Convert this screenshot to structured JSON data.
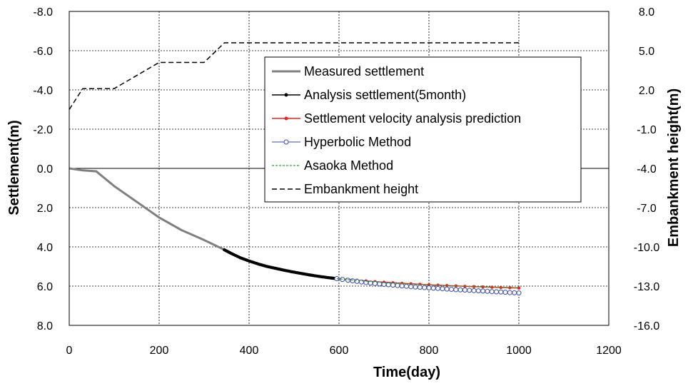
{
  "chart_data": {
    "type": "line",
    "xlabel": "Time(day)",
    "ylabel": "Settlement(m)",
    "y2label": "Embankment height(m)",
    "xlim": [
      0,
      1200
    ],
    "xticks": [
      "0",
      "200",
      "400",
      "600",
      "800",
      "1000",
      "1200"
    ],
    "xtick_values": [
      0,
      200,
      400,
      600,
      800,
      1000,
      1200
    ],
    "ylim": [
      -8.0,
      8.0
    ],
    "y_inverted": true,
    "yticks": [
      "-8.0",
      "-6.0",
      "-4.0",
      "-2.0",
      "0.0",
      "2.0",
      "4.0",
      "6.0",
      "8.0"
    ],
    "ytick_values": [
      -8,
      -6,
      -4,
      -2,
      0,
      2,
      4,
      6,
      8
    ],
    "y2lim": [
      -16.0,
      8.0
    ],
    "y2ticks": [
      "8.0",
      "5.0",
      "2.0",
      "-1.0",
      "-4.0",
      "-7.0",
      "-10.0",
      "-13.0",
      "-16.0"
    ],
    "y2tick_values": [
      8,
      5,
      2,
      -1,
      -4,
      -7,
      -10,
      -13,
      -16
    ],
    "grid": true,
    "legend_position": "top-right",
    "series": [
      {
        "name": "Measured settlement",
        "axis": "left",
        "color": "#7f7f7f",
        "style": "solid-thick",
        "x": [
          0,
          30,
          60,
          100,
          150,
          200,
          250,
          300,
          345
        ],
        "y": [
          0.0,
          0.1,
          0.15,
          0.9,
          1.7,
          2.5,
          3.15,
          3.65,
          4.15
        ]
      },
      {
        "name": "Analysis settlement(5month)",
        "axis": "left",
        "color": "#000000",
        "style": "dot-marker",
        "x": [
          345,
          360,
          380,
          400,
          420,
          440,
          460,
          480,
          500,
          520,
          540,
          560,
          580,
          595
        ],
        "y": [
          4.15,
          4.33,
          4.55,
          4.72,
          4.87,
          5.0,
          5.1,
          5.2,
          5.29,
          5.37,
          5.45,
          5.52,
          5.58,
          5.62
        ]
      },
      {
        "name": "Settlement velocity analysis prediction",
        "axis": "left",
        "color": "#e8231f",
        "style": "dot-marker",
        "x": [
          595,
          640,
          680,
          720,
          760,
          800,
          840,
          880,
          920,
          960,
          1000
        ],
        "y": [
          5.62,
          5.7,
          5.77,
          5.83,
          5.88,
          5.93,
          5.97,
          6.01,
          6.04,
          6.07,
          6.1
        ]
      },
      {
        "name": "Hyperbolic Method",
        "axis": "left",
        "color": "#3b4aa8",
        "style": "circle-marker",
        "x": [
          595,
          620,
          640,
          660,
          680,
          700,
          720,
          740,
          760,
          780,
          800,
          820,
          840,
          860,
          880,
          900,
          920,
          940,
          960,
          980,
          1000
        ],
        "y": [
          5.62,
          5.7,
          5.76,
          5.82,
          5.87,
          5.91,
          5.95,
          5.99,
          6.03,
          6.06,
          6.09,
          6.12,
          6.15,
          6.18,
          6.2,
          6.23,
          6.25,
          6.28,
          6.3,
          6.33,
          6.35
        ]
      },
      {
        "name": "Asaoka Method",
        "axis": "left",
        "color": "#33a02c",
        "style": "dashed-fine",
        "x": [
          595,
          700,
          800,
          900,
          1000
        ],
        "y": [
          5.62,
          5.82,
          5.94,
          6.02,
          6.08
        ]
      },
      {
        "name": "Embankment height",
        "axis": "right",
        "color": "#000000",
        "style": "dashed",
        "x": [
          0,
          30,
          100,
          200,
          300,
          345,
          1000
        ],
        "y": [
          0.5,
          2.1,
          2.1,
          4.1,
          4.1,
          5.6,
          5.6
        ]
      }
    ]
  }
}
